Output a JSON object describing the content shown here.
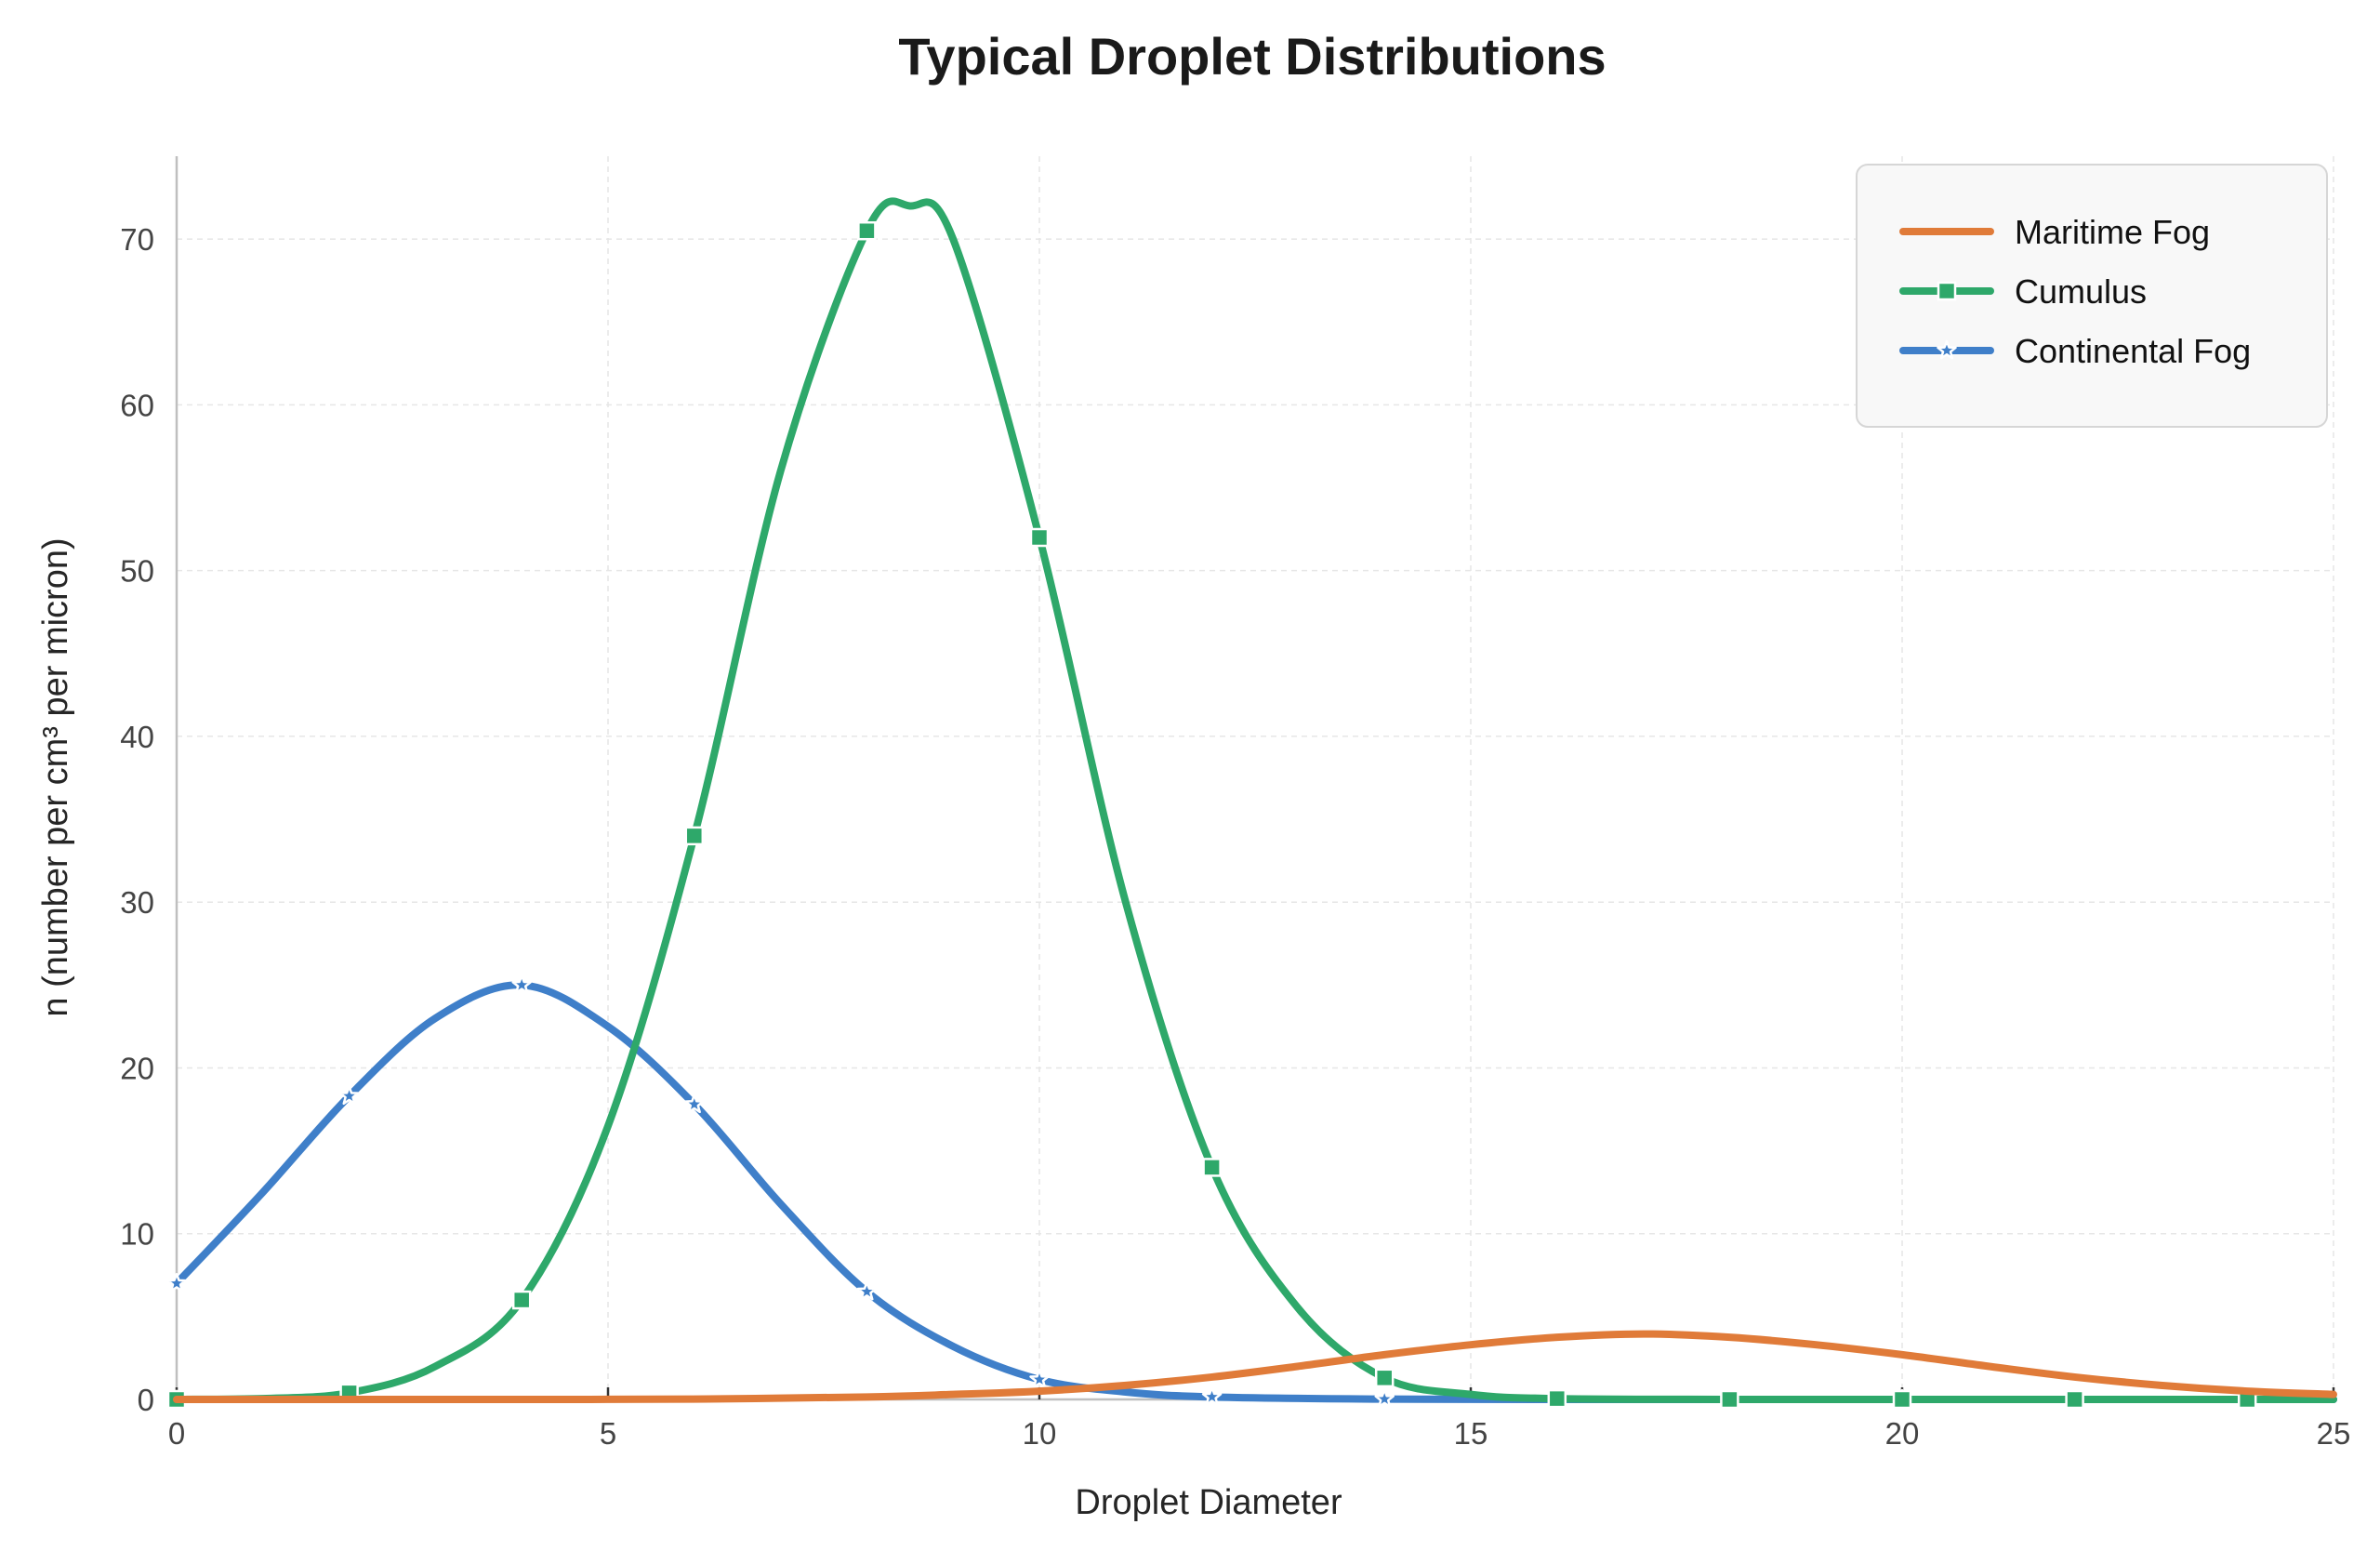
{
  "chart_data": {
    "type": "line",
    "title": "Typical Droplet Distributions",
    "xlabel": "Droplet Diameter",
    "ylabel": "n (number per cm³ per micron)",
    "xlim": [
      0,
      25
    ],
    "ylim": [
      0,
      75
    ],
    "xticks": [
      0,
      5,
      10,
      15,
      20,
      25
    ],
    "xtick_labels": [
      "0",
      "5",
      "10",
      "15",
      "20",
      "25"
    ],
    "yticks": [
      0,
      10,
      20,
      30,
      40,
      50,
      60,
      70
    ],
    "ytick_labels": [
      "0",
      "10",
      "20",
      "30",
      "40",
      "50",
      "60",
      "70"
    ],
    "grid": true,
    "legend_position": "top-right",
    "series": [
      {
        "name": "Maritime Fog",
        "color": "#e07b39",
        "marker": "none",
        "x": [
          0,
          2,
          4,
          6,
          8,
          9,
          10,
          11,
          12,
          13,
          14,
          15,
          16,
          17,
          18,
          19,
          20,
          21,
          22,
          23,
          24,
          25
        ],
        "values": [
          0.0,
          0.0,
          0.0,
          0.02,
          0.15,
          0.3,
          0.5,
          0.85,
          1.35,
          2.0,
          2.7,
          3.3,
          3.75,
          3.95,
          3.75,
          3.3,
          2.7,
          2.0,
          1.35,
          0.85,
          0.5,
          0.3
        ]
      },
      {
        "name": "Cumulus",
        "color": "#2ea86a",
        "marker": "square",
        "x": [
          0,
          1,
          2,
          3,
          4,
          5,
          6,
          7,
          8,
          8.5,
          9,
          10,
          11,
          12,
          13,
          14,
          15,
          16,
          18,
          20,
          22,
          25
        ],
        "values": [
          0.0,
          0.05,
          0.4,
          2.0,
          6.0,
          16.5,
          34.0,
          56.0,
          70.5,
          72.0,
          70.0,
          52.0,
          30.0,
          14.0,
          5.5,
          1.3,
          0.3,
          0.05,
          0.0,
          0.0,
          0.0,
          0.0
        ],
        "marker_x": [
          0,
          2,
          4,
          6,
          8,
          10,
          12,
          14,
          16,
          18,
          20,
          22,
          24
        ],
        "marker_values": [
          0.0,
          0.4,
          6.0,
          34.0,
          70.5,
          52.0,
          14.0,
          1.3,
          0.05,
          0.0,
          0.0,
          0.0,
          0.0
        ]
      },
      {
        "name": "Continental Fog",
        "color": "#3f7fc9",
        "marker": "star",
        "x": [
          0,
          1,
          2,
          3,
          4,
          5,
          6,
          7,
          8,
          9,
          10,
          11,
          12,
          14,
          16,
          18,
          20,
          22,
          24,
          25
        ],
        "values": [
          7.0,
          12.5,
          18.3,
          23.0,
          25.0,
          22.5,
          17.8,
          11.8,
          6.5,
          3.2,
          1.2,
          0.45,
          0.15,
          0.02,
          0.0,
          0.0,
          0.0,
          0.0,
          0.0,
          0.0
        ],
        "marker_x": [
          0,
          2,
          4,
          6,
          8,
          10,
          12,
          14,
          16,
          18,
          20,
          22,
          24
        ],
        "marker_values": [
          7.0,
          18.3,
          25.0,
          17.8,
          6.5,
          1.2,
          0.15,
          0.02,
          0.0,
          0.0,
          0.0,
          0.0,
          0.0
        ]
      }
    ]
  }
}
